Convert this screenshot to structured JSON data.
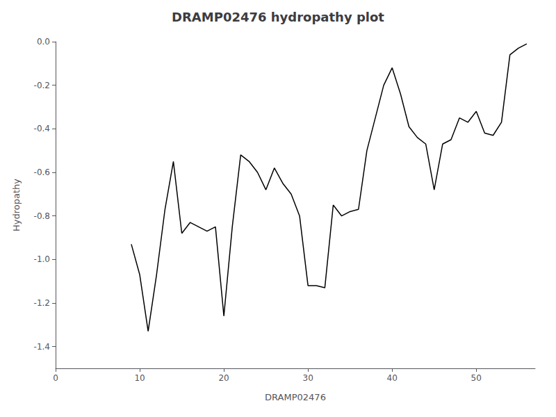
{
  "chart_data": {
    "type": "line",
    "title": "DRAMP02476 hydropathy plot",
    "xlabel": "DRAMP02476",
    "ylabel": "Hydropathy",
    "color": "#000000",
    "grid": false,
    "xlim": [
      0,
      57
    ],
    "ylim": [
      -1.5,
      0.0
    ],
    "xticks": [
      0,
      10,
      20,
      30,
      40,
      50
    ],
    "yticks": [
      -1.4,
      -1.2,
      {
        "value": -1.0,
        "label": "-1.0"
      },
      -0.8,
      -0.6,
      -0.4,
      -0.2,
      {
        "value": 0.0,
        "label": "0.0"
      }
    ],
    "x": [
      9,
      10,
      11,
      12,
      13,
      14,
      15,
      16,
      17,
      18,
      19,
      20,
      21,
      22,
      23,
      24,
      25,
      26,
      27,
      28,
      29,
      30,
      31,
      32,
      33,
      34,
      35,
      36,
      37,
      38,
      39,
      40,
      41,
      42,
      43,
      44,
      45,
      46,
      47,
      48,
      49,
      50,
      51,
      52,
      53,
      54,
      55,
      56
    ],
    "values": [
      -0.93,
      -1.07,
      -1.33,
      -1.07,
      -0.77,
      -0.55,
      -0.88,
      -0.83,
      -0.85,
      -0.87,
      -0.85,
      -1.26,
      -0.85,
      -0.52,
      -0.55,
      -0.6,
      -0.68,
      -0.58,
      -0.65,
      -0.7,
      -0.8,
      -1.12,
      -1.12,
      -1.13,
      -0.75,
      -0.8,
      -0.78,
      -0.77,
      -0.5,
      -0.35,
      -0.2,
      -0.12,
      -0.24,
      -0.39,
      -0.44,
      -0.47,
      -0.68,
      -0.47,
      -0.45,
      -0.35,
      -0.37,
      -0.32,
      -0.42,
      -0.43,
      -0.37,
      -0.06,
      -0.03,
      -0.01
    ]
  }
}
